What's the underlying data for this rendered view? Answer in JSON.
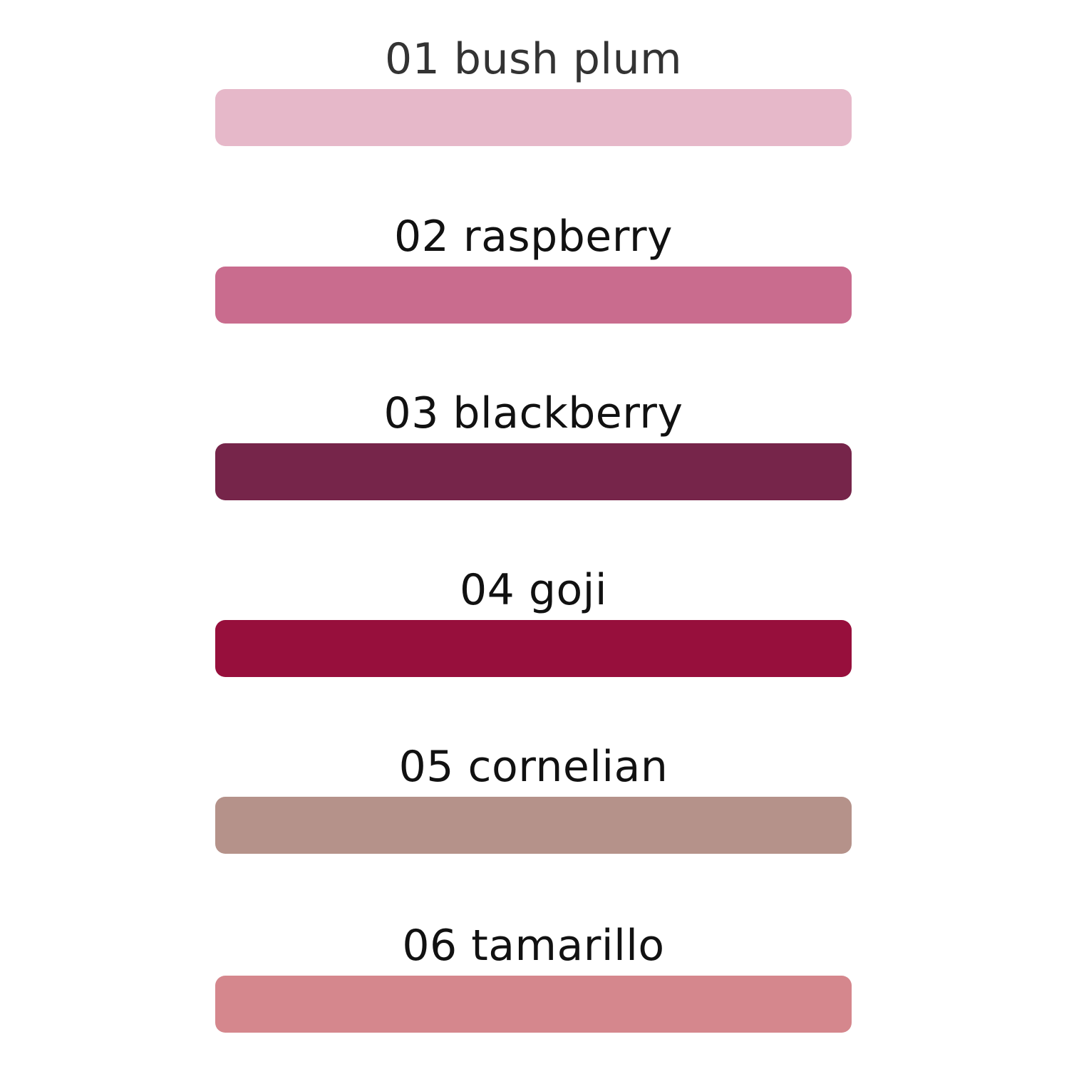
{
  "swatches": [
    {
      "label": "01 bush plum",
      "color": "#E6B8C9",
      "text_color": "#333333"
    },
    {
      "label": "02 raspberry",
      "color": "#C96C8E",
      "text_color": "#111111"
    },
    {
      "label": "03 blackberry",
      "color": "#76254A",
      "text_color": "#111111"
    },
    {
      "label": "04 goji",
      "color": "#970F3C",
      "text_color": "#111111"
    },
    {
      "label": "05 cornelian",
      "color": "#B5928A",
      "text_color": "#111111"
    },
    {
      "label": "06 tamarillo",
      "color": "#D5878D",
      "text_color": "#111111"
    }
  ]
}
